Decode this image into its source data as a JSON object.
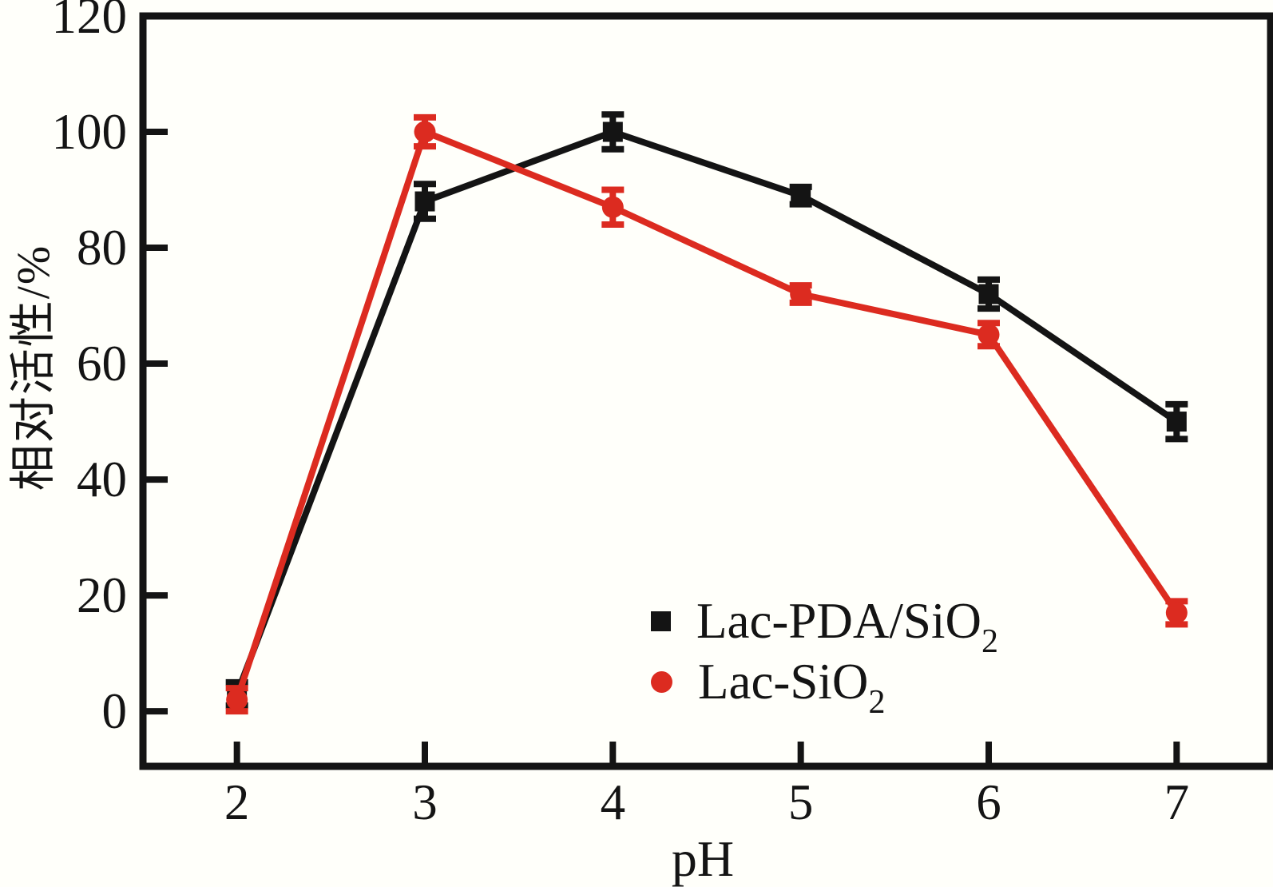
{
  "figure": {
    "background_color": "#fffffa",
    "frame_color": "#141414"
  },
  "chart_data": {
    "type": "line",
    "title": "",
    "xlabel": "pH",
    "ylabel": "相对活性/%",
    "x": [
      2,
      3,
      4,
      5,
      6,
      7
    ],
    "xticks": [
      2,
      3,
      4,
      5,
      6,
      7
    ],
    "yticks": [
      0,
      20,
      40,
      60,
      80,
      100,
      120
    ],
    "xlim": [
      1.5,
      7.5
    ],
    "ylim": [
      -9.5,
      120
    ],
    "grid": false,
    "legend_position": "inside-bottom-right",
    "series": [
      {
        "name": "Lac-PDA/SiO2",
        "label_main": "Lac-PDA/SiO",
        "label_sub": "2",
        "color": "#141414",
        "marker": "square",
        "values": [
          3,
          88,
          100,
          89,
          72,
          50
        ],
        "errors": [
          2,
          3,
          3,
          1.5,
          2.5,
          3
        ]
      },
      {
        "name": "Lac-SiO2",
        "label_main": "Lac-SiO",
        "label_sub": "2",
        "color": "#dc2b20",
        "marker": "circle",
        "values": [
          2,
          100,
          87,
          72,
          65,
          17
        ],
        "errors": [
          2,
          2.5,
          3,
          1.5,
          2,
          2
        ]
      }
    ]
  }
}
